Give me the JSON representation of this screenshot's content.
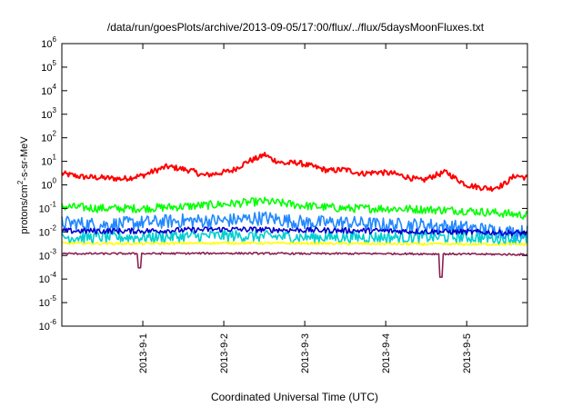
{
  "chart_data": {
    "type": "line",
    "title": "/data/run/goesPlots/archive/2013-09-05/17:00/flux/../flux/5daysMoonFluxes.txt",
    "xlabel": "Coordinated Universal Time (UTC)",
    "ylabel": "protons/cm²-s-sr-MeV",
    "y_scale": "log",
    "ylim_exp": [
      -6,
      6
    ],
    "y_tick_exponents": [
      6,
      5,
      4,
      3,
      2,
      1,
      0,
      -1,
      -2,
      -3,
      -4,
      -5,
      -6
    ],
    "y_tick_base": "10",
    "xlim_days": [
      0.0,
      5.75
    ],
    "x_ticks": [
      {
        "label": "2013-9-1",
        "day": 1.0
      },
      {
        "label": "2013-9-2",
        "day": 2.0
      },
      {
        "label": "2013-9-3",
        "day": 3.0
      },
      {
        "label": "2013-9-4",
        "day": 4.0
      },
      {
        "label": "2013-9-5",
        "day": 5.0
      }
    ],
    "grid": false,
    "legend": "none",
    "series": [
      {
        "color": "#ff0000",
        "points": [
          [
            0.0,
            3.0
          ],
          [
            0.25,
            2.2
          ],
          [
            0.5,
            2.0
          ],
          [
            0.75,
            1.8
          ],
          [
            1.0,
            2.5
          ],
          [
            1.15,
            4.0
          ],
          [
            1.3,
            6.0
          ],
          [
            1.45,
            5.0
          ],
          [
            1.6,
            4.0
          ],
          [
            1.75,
            2.5
          ],
          [
            1.9,
            3.0
          ],
          [
            2.1,
            4.0
          ],
          [
            2.3,
            10.0
          ],
          [
            2.45,
            15.0
          ],
          [
            2.5,
            20.0
          ],
          [
            2.6,
            12.0
          ],
          [
            2.75,
            8.0
          ],
          [
            2.9,
            9.0
          ],
          [
            3.1,
            6.0
          ],
          [
            3.3,
            4.0
          ],
          [
            3.5,
            4.5
          ],
          [
            3.7,
            3.0
          ],
          [
            3.9,
            3.5
          ],
          [
            4.1,
            3.0
          ],
          [
            4.3,
            2.0
          ],
          [
            4.45,
            1.5
          ],
          [
            4.6,
            2.5
          ],
          [
            4.75,
            3.5
          ],
          [
            4.85,
            2.0
          ],
          [
            5.0,
            1.0
          ],
          [
            5.15,
            0.8
          ],
          [
            5.3,
            0.7
          ],
          [
            5.45,
            1.0
          ],
          [
            5.6,
            2.5
          ],
          [
            5.75,
            2.0
          ]
        ],
        "noise": 0.12
      },
      {
        "color": "#00ff00",
        "points": [
          [
            0.0,
            0.12
          ],
          [
            0.5,
            0.1
          ],
          [
            1.0,
            0.1
          ],
          [
            1.5,
            0.12
          ],
          [
            2.0,
            0.15
          ],
          [
            2.5,
            0.2
          ],
          [
            3.0,
            0.13
          ],
          [
            3.5,
            0.1
          ],
          [
            4.0,
            0.1
          ],
          [
            4.5,
            0.09
          ],
          [
            5.0,
            0.08
          ],
          [
            5.5,
            0.06
          ],
          [
            5.75,
            0.05
          ]
        ],
        "noise": 0.18
      },
      {
        "color": "#2288ff",
        "points": [
          [
            0.0,
            0.025
          ],
          [
            0.5,
            0.02
          ],
          [
            1.0,
            0.025
          ],
          [
            1.5,
            0.03
          ],
          [
            2.0,
            0.03
          ],
          [
            2.5,
            0.04
          ],
          [
            3.0,
            0.025
          ],
          [
            3.5,
            0.025
          ],
          [
            4.0,
            0.02
          ],
          [
            4.5,
            0.02
          ],
          [
            5.0,
            0.015
          ],
          [
            5.5,
            0.01
          ],
          [
            5.75,
            0.01
          ]
        ],
        "noise": 0.3
      },
      {
        "color": "#00ced1",
        "points": [
          [
            0.0,
            0.006
          ],
          [
            1.0,
            0.006
          ],
          [
            2.0,
            0.007
          ],
          [
            3.0,
            0.006
          ],
          [
            4.0,
            0.006
          ],
          [
            5.0,
            0.006
          ],
          [
            5.75,
            0.005
          ]
        ],
        "noise": 0.25
      },
      {
        "color": "#0000cc",
        "points": [
          [
            0.0,
            0.011
          ],
          [
            1.0,
            0.011
          ],
          [
            2.0,
            0.013
          ],
          [
            3.0,
            0.012
          ],
          [
            4.0,
            0.011
          ],
          [
            5.0,
            0.01
          ],
          [
            5.75,
            0.009
          ]
        ],
        "noise": 0.12
      },
      {
        "color": "#ffff00",
        "points": [
          [
            0.0,
            0.0033
          ],
          [
            1.0,
            0.0032
          ],
          [
            2.0,
            0.0034
          ],
          [
            3.0,
            0.0033
          ],
          [
            4.0,
            0.0031
          ],
          [
            5.0,
            0.003
          ],
          [
            5.75,
            0.003
          ]
        ],
        "noise": 0.05
      },
      {
        "color": "#8b2252",
        "points": [
          [
            0.0,
            0.0012
          ],
          [
            1.0,
            0.0012
          ],
          [
            2.0,
            0.00125
          ],
          [
            3.0,
            0.0012
          ],
          [
            4.0,
            0.0012
          ],
          [
            5.0,
            0.00115
          ],
          [
            5.75,
            0.0011
          ]
        ],
        "noise": 0.04,
        "dips": [
          [
            0.96,
            0.0003
          ],
          [
            4.68,
            0.00012
          ]
        ]
      }
    ]
  }
}
